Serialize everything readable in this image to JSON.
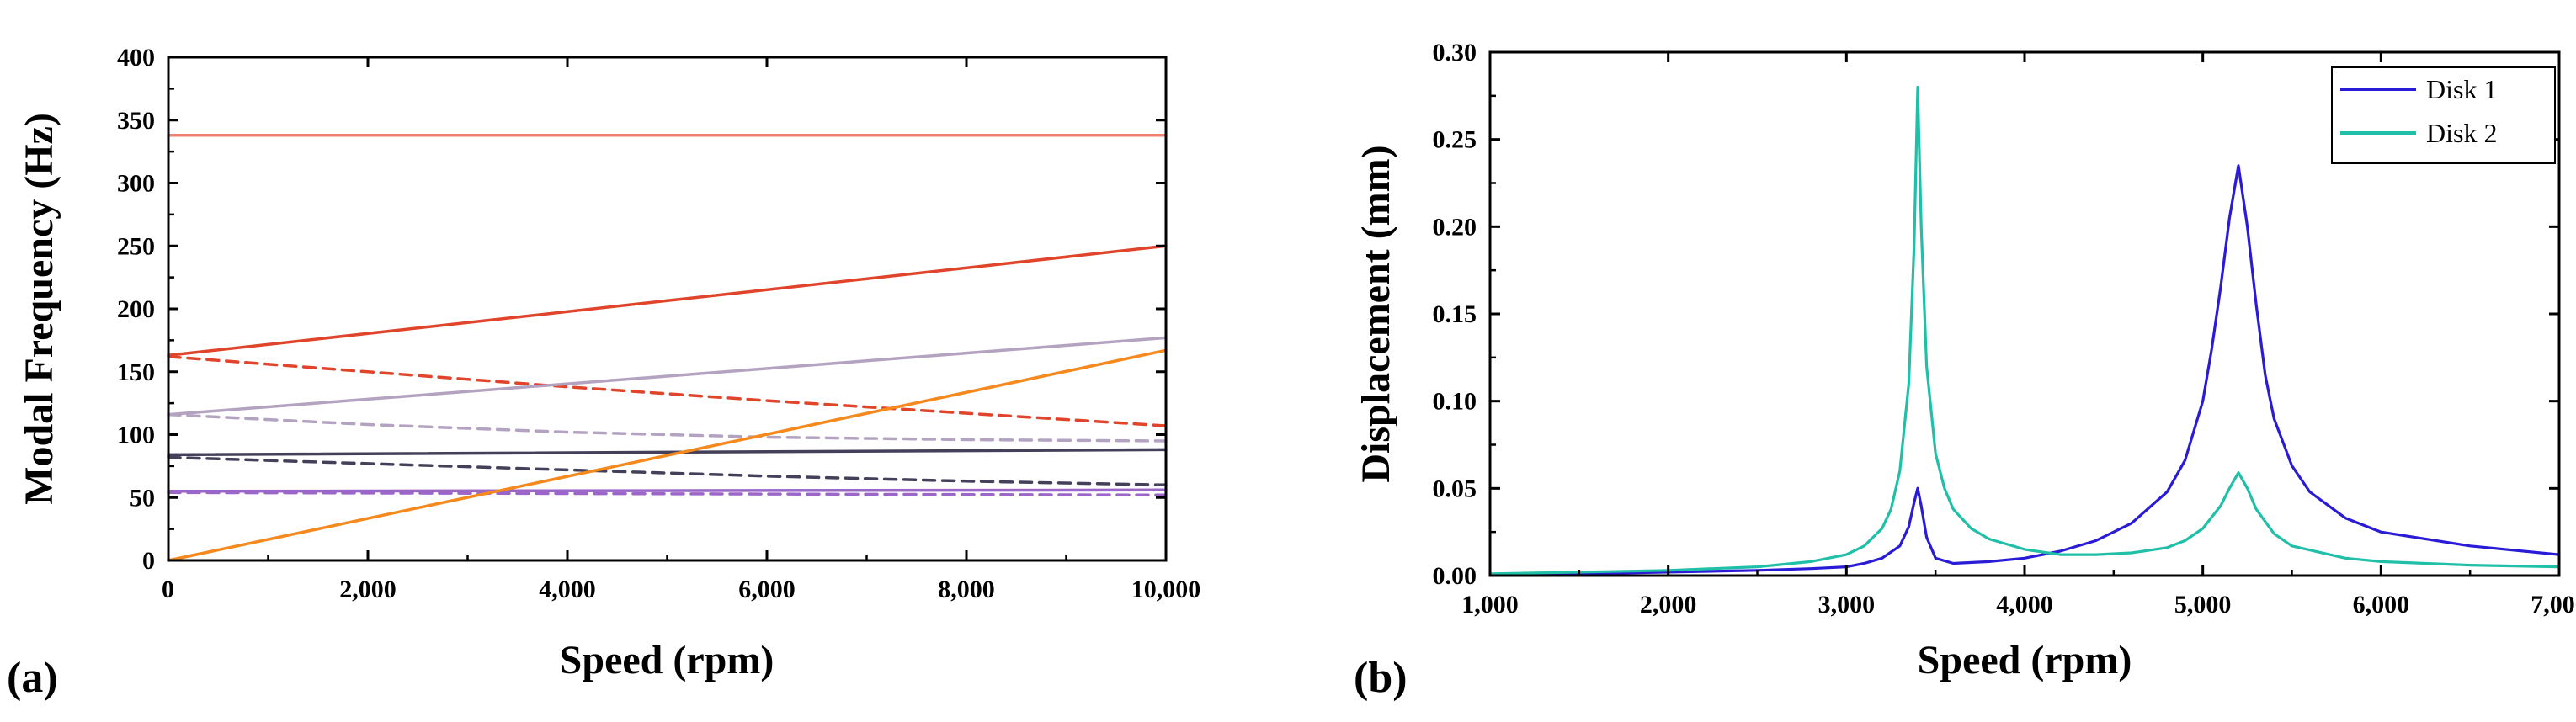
{
  "chart_data": [
    {
      "type": "line",
      "panel_label": "(a)",
      "xlabel": "Speed (rpm)",
      "ylabel": "Modal Frequency (Hz)",
      "xlim": [
        0,
        10000
      ],
      "ylim": [
        0,
        400
      ],
      "xticks": [
        0,
        2000,
        4000,
        6000,
        8000,
        10000
      ],
      "xtick_labels": [
        "0",
        "2,000",
        "4,000",
        "6,000",
        "8,000",
        "10,000"
      ],
      "yticks": [
        0,
        50,
        100,
        150,
        200,
        250,
        300,
        350,
        400
      ],
      "ytick_labels": [
        "0",
        "50",
        "100",
        "150",
        "200",
        "250",
        "300",
        "350",
        "400"
      ],
      "grid": false,
      "legend": "none",
      "series": [
        {
          "color": "#f08070",
          "dash": "solid",
          "x": [
            0,
            10000
          ],
          "y": [
            338,
            338
          ]
        },
        {
          "color": "#e0442a",
          "dash": "solid",
          "x": [
            0,
            10000
          ],
          "y": [
            163,
            250
          ]
        },
        {
          "color": "#e0442a",
          "dash": "dashed",
          "x": [
            0,
            2000,
            4000,
            6000,
            8000,
            10000
          ],
          "y": [
            162,
            150,
            138,
            127,
            117,
            107
          ]
        },
        {
          "color": "#b3a3c0",
          "dash": "solid",
          "x": [
            0,
            10000
          ],
          "y": [
            116,
            177
          ]
        },
        {
          "color": "#b3a3c0",
          "dash": "dashed",
          "x": [
            0,
            2000,
            4000,
            6000,
            8000,
            10000
          ],
          "y": [
            116,
            108,
            102,
            98,
            96,
            95
          ]
        },
        {
          "color": "#45405a",
          "dash": "solid",
          "x": [
            0,
            10000
          ],
          "y": [
            84,
            88
          ]
        },
        {
          "color": "#45405a",
          "dash": "dashed",
          "x": [
            0,
            2000,
            4000,
            6000,
            8000,
            10000
          ],
          "y": [
            82,
            77,
            72,
            67,
            63,
            60
          ]
        },
        {
          "color": "#9b66c8",
          "dash": "solid",
          "x": [
            0,
            10000
          ],
          "y": [
            55,
            56
          ]
        },
        {
          "color": "#9b66c8",
          "dash": "dashed",
          "x": [
            0,
            10000
          ],
          "y": [
            54,
            52
          ]
        },
        {
          "color": "#f5891e",
          "dash": "solid",
          "x": [
            0,
            10000
          ],
          "y": [
            0,
            167
          ]
        }
      ]
    },
    {
      "type": "line",
      "panel_label": "(b)",
      "xlabel": "Speed (rpm)",
      "ylabel": "Displacement (mm)",
      "xlim": [
        1000,
        7000
      ],
      "ylim": [
        0,
        0.3
      ],
      "xticks": [
        1000,
        2000,
        3000,
        4000,
        5000,
        6000,
        7000
      ],
      "xtick_labels": [
        "1,000",
        "2,000",
        "3,000",
        "4,000",
        "5,000",
        "6,000",
        "7,000"
      ],
      "yticks": [
        0,
        0.05,
        0.1,
        0.15,
        0.2,
        0.25,
        0.3
      ],
      "ytick_labels": [
        "0.00",
        "0.05",
        "0.10",
        "0.15",
        "0.20",
        "0.25",
        "0.30"
      ],
      "grid": false,
      "legend": "top-right",
      "series": [
        {
          "name": "Disk 1",
          "color": "#2a1bd6",
          "x": [
            1000,
            1500,
            2000,
            2500,
            2800,
            3000,
            3100,
            3200,
            3300,
            3350,
            3380,
            3400,
            3420,
            3450,
            3500,
            3600,
            3800,
            4000,
            4200,
            4400,
            4600,
            4800,
            4900,
            5000,
            5050,
            5100,
            5150,
            5200,
            5250,
            5300,
            5350,
            5400,
            5500,
            5600,
            5800,
            6000,
            6500,
            7000
          ],
          "y": [
            0.0005,
            0.001,
            0.002,
            0.003,
            0.004,
            0.005,
            0.007,
            0.01,
            0.017,
            0.028,
            0.042,
            0.05,
            0.04,
            0.022,
            0.01,
            0.007,
            0.008,
            0.01,
            0.014,
            0.02,
            0.03,
            0.048,
            0.066,
            0.1,
            0.13,
            0.165,
            0.205,
            0.235,
            0.2,
            0.155,
            0.115,
            0.09,
            0.063,
            0.048,
            0.033,
            0.025,
            0.017,
            0.012
          ]
        },
        {
          "name": "Disk 2",
          "color": "#20bfa8",
          "x": [
            1000,
            1500,
            2000,
            2500,
            2800,
            3000,
            3100,
            3200,
            3250,
            3300,
            3350,
            3380,
            3400,
            3420,
            3450,
            3500,
            3550,
            3600,
            3700,
            3800,
            4000,
            4200,
            4400,
            4600,
            4800,
            4900,
            5000,
            5100,
            5150,
            5200,
            5250,
            5300,
            5400,
            5500,
            5800,
            6000,
            6500,
            7000
          ],
          "y": [
            0.001,
            0.002,
            0.003,
            0.005,
            0.008,
            0.012,
            0.017,
            0.027,
            0.038,
            0.06,
            0.11,
            0.19,
            0.28,
            0.2,
            0.12,
            0.07,
            0.05,
            0.038,
            0.027,
            0.021,
            0.015,
            0.012,
            0.012,
            0.013,
            0.016,
            0.02,
            0.027,
            0.04,
            0.05,
            0.059,
            0.05,
            0.038,
            0.024,
            0.017,
            0.01,
            0.008,
            0.006,
            0.005
          ]
        }
      ]
    }
  ]
}
